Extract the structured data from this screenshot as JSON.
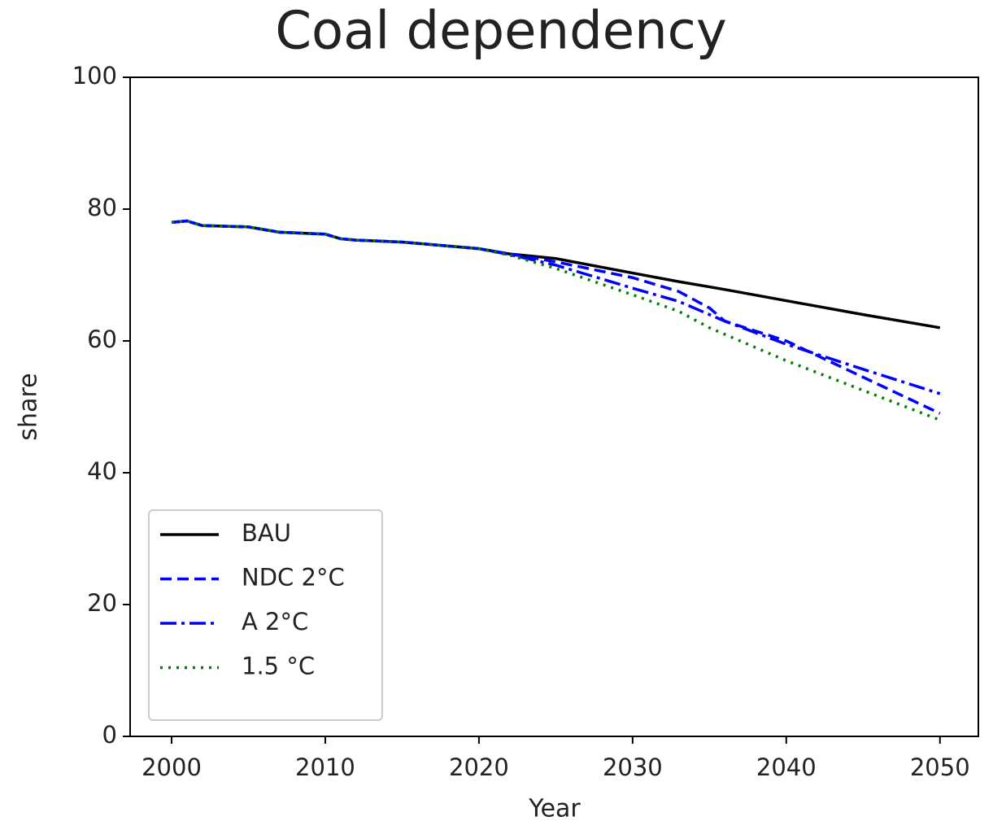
{
  "chart_data": {
    "type": "line",
    "title": "Coal dependency",
    "x_label": "Year",
    "y_label": "share",
    "x": [
      2000,
      2001,
      2002,
      2005,
      2007,
      2010,
      2011,
      2012,
      2015,
      2020,
      2022,
      2025,
      2030,
      2033,
      2035,
      2036,
      2040,
      2045,
      2050
    ],
    "series": [
      {
        "name": "BAU",
        "color": "#000000",
        "style": "solid",
        "values": [
          78,
          78.2,
          77.5,
          77.3,
          76.5,
          76.2,
          75.5,
          75.3,
          75,
          74,
          73.2,
          72.5,
          70.3,
          69,
          68.2,
          67.8,
          66.1,
          64,
          62
        ]
      },
      {
        "name": "NDC 2°C",
        "color": "#0000ff",
        "style": "dashed",
        "values": [
          78,
          78.2,
          77.5,
          77.3,
          76.5,
          76.2,
          75.5,
          75.3,
          75,
          74,
          73.2,
          72,
          69.6,
          67.5,
          65,
          63,
          60,
          54.5,
          49
        ]
      },
      {
        "name": "A 2°C",
        "color": "#0000ff",
        "style": "dashdot",
        "values": [
          78,
          78.2,
          77.5,
          77.3,
          76.5,
          76.2,
          75.5,
          75.3,
          75,
          74,
          73.1,
          71.5,
          68,
          66,
          64,
          63,
          59.5,
          55.7,
          52
        ]
      },
      {
        "name": "1.5 °C",
        "color": "#008000",
        "style": "dotted",
        "values": [
          78,
          78.2,
          77.5,
          77.3,
          76.5,
          76.2,
          75.5,
          75.3,
          75,
          74,
          73,
          71,
          67,
          64.5,
          62,
          61,
          57,
          52.5,
          48
        ]
      }
    ],
    "xlim": [
      1997.3,
      2052.5
    ],
    "xticks": [
      2000,
      2010,
      2020,
      2030,
      2040,
      2050
    ],
    "ylim": [
      0,
      100
    ],
    "yticks": [
      0,
      20,
      40,
      60,
      80,
      100
    ],
    "legend": "lower left",
    "grid": false
  }
}
